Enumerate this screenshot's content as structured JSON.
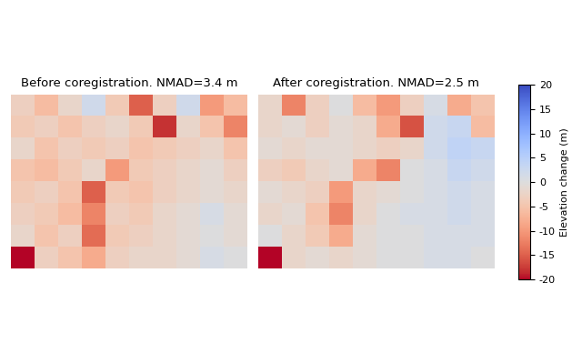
{
  "chart_data": [
    {
      "type": "heatmap",
      "title": "Before coregistration. NMAD=3.4 m",
      "tick_labels": false,
      "zlim": [
        -20,
        20
      ],
      "cells": [
        [
          -3,
          -6,
          -2,
          2,
          -4,
          -15,
          -3,
          2,
          -10,
          -6
        ],
        [
          -4,
          -3,
          -5,
          -3,
          -2,
          -4,
          -18,
          -2,
          -5,
          -12
        ],
        [
          -2,
          -5,
          -3,
          -4,
          -3,
          -5,
          -4,
          -3,
          -2,
          -5
        ],
        [
          -5,
          -6,
          -4,
          -2,
          -10,
          -4,
          -3,
          -2,
          -1,
          -3
        ],
        [
          -4,
          -3,
          -5,
          -15,
          -4,
          -5,
          -3,
          -2,
          -1,
          -2
        ],
        [
          -3,
          -4,
          -6,
          -12,
          -3,
          -4,
          -2,
          -1,
          1,
          -1
        ],
        [
          -2,
          -5,
          -3,
          -14,
          -4,
          -3,
          -2,
          -1,
          0,
          -1
        ],
        [
          -20,
          -3,
          -5,
          -8,
          -3,
          -2,
          -2,
          -1,
          1,
          0
        ]
      ]
    },
    {
      "type": "heatmap",
      "title": "After coregistration. NMAD=2.5 m",
      "tick_labels": false,
      "zlim": [
        -20,
        20
      ],
      "colorbar_label": "Elevation change (m)",
      "colorbar_ticks": [
        -20,
        -15,
        -10,
        -5,
        0,
        5,
        10,
        15,
        20
      ],
      "cells": [
        [
          -2,
          -12,
          -3,
          0,
          -6,
          -10,
          -3,
          1,
          -8,
          -5
        ],
        [
          -2,
          -1,
          -3,
          -1,
          -2,
          -8,
          -16,
          2,
          3,
          -6
        ],
        [
          -1,
          -2,
          -1,
          -1,
          -2,
          -3,
          -2,
          2,
          4,
          3
        ],
        [
          -3,
          -4,
          -2,
          -1,
          -8,
          -12,
          0,
          1,
          3,
          2
        ],
        [
          -1,
          -2,
          -3,
          -10,
          -2,
          -1,
          0,
          1,
          2,
          1
        ],
        [
          -2,
          -1,
          -5,
          -12,
          -2,
          0,
          1,
          1,
          2,
          1
        ],
        [
          0,
          -2,
          -4,
          -8,
          -1,
          0,
          0,
          1,
          1,
          1
        ],
        [
          -20,
          -2,
          -1,
          -2,
          -1,
          0,
          0,
          1,
          1,
          0
        ]
      ]
    }
  ]
}
